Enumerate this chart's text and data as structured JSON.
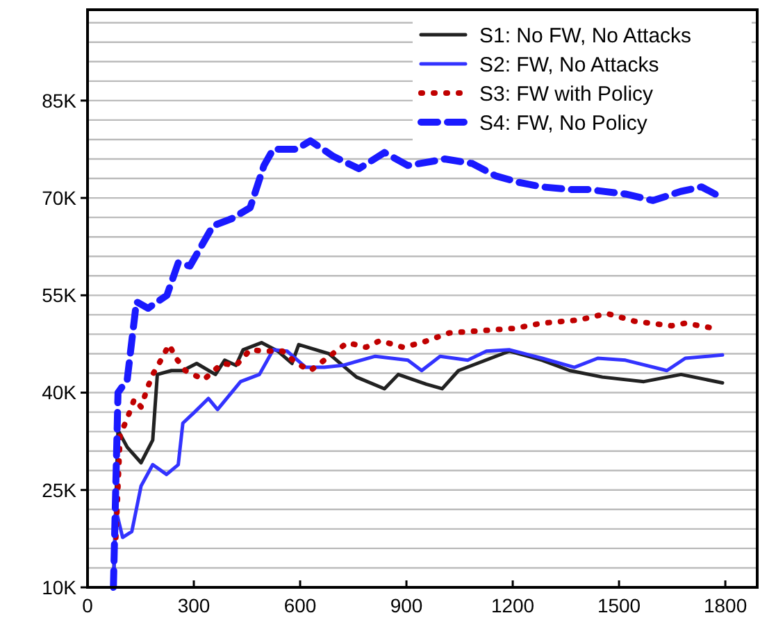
{
  "chart_data": {
    "type": "line",
    "xlim": [
      0,
      1890
    ],
    "ylim": [
      10000,
      99000
    ],
    "xticks": [
      0,
      300,
      600,
      900,
      1200,
      1500,
      1800
    ],
    "yticks": [
      {
        "value": 10000,
        "label": "10K"
      },
      {
        "value": 13000,
        "label": null
      },
      {
        "value": 16000,
        "label": null
      },
      {
        "value": 19000,
        "label": null
      },
      {
        "value": 22000,
        "label": null
      },
      {
        "value": 25000,
        "label": "25K"
      },
      {
        "value": 28000,
        "label": null
      },
      {
        "value": 31000,
        "label": null
      },
      {
        "value": 34000,
        "label": null
      },
      {
        "value": 37000,
        "label": null
      },
      {
        "value": 40000,
        "label": "40K"
      },
      {
        "value": 43000,
        "label": null
      },
      {
        "value": 46000,
        "label": null
      },
      {
        "value": 49000,
        "label": null
      },
      {
        "value": 52000,
        "label": null
      },
      {
        "value": 55000,
        "label": "55K"
      },
      {
        "value": 58000,
        "label": null
      },
      {
        "value": 61000,
        "label": null
      },
      {
        "value": 64000,
        "label": null
      },
      {
        "value": 67000,
        "label": null
      },
      {
        "value": 70000,
        "label": "70K"
      },
      {
        "value": 73000,
        "label": null
      },
      {
        "value": 76000,
        "label": null
      },
      {
        "value": 79000,
        "label": null
      },
      {
        "value": 82000,
        "label": null
      },
      {
        "value": 85000,
        "label": "85K"
      },
      {
        "value": 88000,
        "label": null
      },
      {
        "value": 91000,
        "label": null
      },
      {
        "value": 94000,
        "label": null
      },
      {
        "value": 97000,
        "label": null
      }
    ],
    "grid": "y",
    "legend": "top right",
    "marker": "none",
    "series": [
      {
        "name": "S1: No FW, No Attacks",
        "color": "#222222",
        "line_style": "solid",
        "x": [
          73,
          86,
          112,
          151,
          184,
          197,
          237,
          269,
          308,
          361,
          387,
          419,
          439,
          491,
          537,
          577,
          596,
          681,
          759,
          838,
          877,
          956,
          1001,
          1047,
          1191,
          1283,
          1361,
          1453,
          1570,
          1675,
          1792
        ],
        "values": [
          10000,
          34200,
          31600,
          29200,
          32700,
          42800,
          43400,
          43400,
          44500,
          42800,
          45000,
          44200,
          46600,
          47700,
          46400,
          44500,
          47400,
          46000,
          42400,
          40600,
          42800,
          41300,
          40600,
          43400,
          46400,
          45000,
          43400,
          42400,
          41700,
          42800,
          41500
        ]
      },
      {
        "name": "S2: FW, No Attacks",
        "color": "#3333ff",
        "line_style": "solid",
        "x": [
          73,
          80,
          99,
          125,
          151,
          184,
          223,
          256,
          269,
          302,
          341,
          367,
          432,
          485,
          524,
          563,
          616,
          668,
          720,
          812,
          904,
          943,
          995,
          1073,
          1126,
          1191,
          1283,
          1374,
          1440,
          1518,
          1635,
          1687,
          1792
        ],
        "values": [
          10000,
          22000,
          17700,
          18600,
          25600,
          28900,
          27400,
          28900,
          35300,
          37000,
          39100,
          37400,
          41700,
          42800,
          46600,
          46400,
          43900,
          43900,
          44200,
          45600,
          45000,
          43400,
          45600,
          45000,
          46400,
          46600,
          45300,
          43900,
          45300,
          45000,
          43400,
          45300,
          45800
        ]
      },
      {
        "name": "S3: FW with Policy",
        "color": "#c00000",
        "line_style": "dotted",
        "x": [
          80,
          86,
          92,
          112,
          132,
          151,
          171,
          184,
          210,
          230,
          250,
          276,
          328,
          380,
          419,
          459,
          498,
          550,
          590,
          629,
          668,
          733,
          786,
          825,
          890,
          943,
          1021,
          1126,
          1204,
          1283,
          1387,
          1466,
          1544,
          1648,
          1687,
          1759
        ],
        "values": [
          17700,
          25600,
          33500,
          36000,
          39000,
          37800,
          41000,
          42800,
          45300,
          47400,
          45300,
          43400,
          42000,
          44500,
          44200,
          46600,
          46400,
          46400,
          44500,
          43400,
          45000,
          47700,
          47000,
          48000,
          47000,
          47700,
          49200,
          49600,
          49900,
          50700,
          51200,
          52200,
          51000,
          50300,
          50700,
          50000
        ]
      },
      {
        "name": "S4: FW, No Policy",
        "color": "#1a1aff",
        "line_style": "dashed",
        "x": [
          73,
          86,
          112,
          138,
          171,
          224,
          256,
          289,
          354,
          407,
          459,
          498,
          524,
          590,
          629,
          694,
          766,
          838,
          904,
          969,
          1008,
          1086,
          1152,
          1217,
          1283,
          1361,
          1413,
          1518,
          1596,
          1674,
          1733,
          1792
        ],
        "values": [
          10000,
          40000,
          42000,
          54000,
          53000,
          55000,
          60000,
          59500,
          65700,
          66800,
          68500,
          75000,
          77500,
          77500,
          78800,
          76400,
          74500,
          77000,
          75000,
          75600,
          76000,
          75300,
          73400,
          72400,
          71700,
          71300,
          71300,
          70600,
          69600,
          71000,
          71700,
          70000
        ]
      }
    ]
  }
}
